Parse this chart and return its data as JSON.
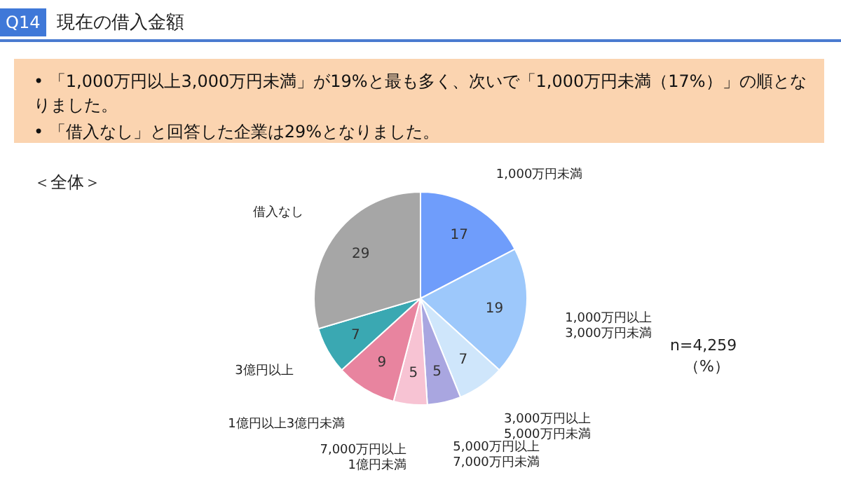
{
  "chart_data": {
    "type": "pie",
    "title": "現在の借入金額",
    "annotations": [
      "Q14",
      "• 「1,000万円以上3,000万円未満」が19%と最も多く、次いで「1,000万円未満（17%）」の順となりました。",
      "• 「借入なし」と回答した企業は29%となりました。",
      "＜全体＞",
      "n=4,259",
      "（%）"
    ],
    "categories": [
      "1,000万円未満",
      "1,000万円以上\n3,000万円未満",
      "3,000万円以上\n5,000万円未満",
      "5,000万円以上\n7,000万円未満",
      "7,000万円以上\n1億円未満",
      "1億円以上3億円未満",
      "3億円以上",
      "借入なし"
    ],
    "values": [
      17,
      19,
      7,
      5,
      5,
      9,
      7,
      29
    ],
    "colors": [
      "#6f9dfb",
      "#9dc8fb",
      "#cfe6fb",
      "#a9a6e0",
      "#f7c3d3",
      "#e8849f",
      "#3aa8b2",
      "#a6a6a6"
    ],
    "data_labels": true
  }
}
